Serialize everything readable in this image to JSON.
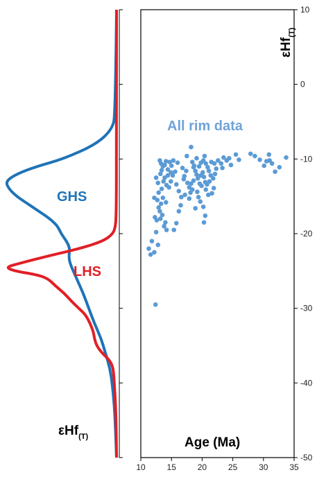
{
  "chart_data": {
    "type": "scatter",
    "kde_panel": {
      "axis_label_main": "εHf",
      "axis_label_sub": "(T)",
      "curves": [
        {
          "name": "GHS",
          "color": "#1f73b7",
          "profile": [
            [
              10,
              0
            ],
            [
              -4,
              0.01
            ],
            [
              -6,
              0.04
            ],
            [
              -8,
              0.18
            ],
            [
              -10,
              0.48
            ],
            [
              -11,
              0.72
            ],
            [
              -12,
              0.9
            ],
            [
              -13,
              1.0
            ],
            [
              -14,
              0.97
            ],
            [
              -15,
              0.9
            ],
            [
              -16,
              0.8
            ],
            [
              -17,
              0.7
            ],
            [
              -18,
              0.6
            ],
            [
              -19,
              0.53
            ],
            [
              -20,
              0.5
            ],
            [
              -21,
              0.45
            ],
            [
              -22,
              0.42
            ],
            [
              -23,
              0.43
            ],
            [
              -24,
              0.42
            ],
            [
              -26,
              0.36
            ],
            [
              -28,
              0.3
            ],
            [
              -30,
              0.25
            ],
            [
              -32,
              0.2
            ],
            [
              -34,
              0.14
            ],
            [
              -36,
              0.1
            ],
            [
              -38,
              0.06
            ],
            [
              -40,
              0.04
            ],
            [
              -43,
              0.02
            ],
            [
              -46,
              0.01
            ],
            [
              -50,
              0
            ]
          ]
        },
        {
          "name": "LHS",
          "color": "#e11f26",
          "profile": [
            [
              10,
              0
            ],
            [
              -10,
              0
            ],
            [
              -16,
              0.002
            ],
            [
              -18,
              0.005
            ],
            [
              -19,
              0.01
            ],
            [
              -20,
              0.03
            ],
            [
              -21,
              0.12
            ],
            [
              -22,
              0.33
            ],
            [
              -23,
              0.62
            ],
            [
              -24,
              0.88
            ],
            [
              -24.5,
              1.0
            ],
            [
              -25,
              0.92
            ],
            [
              -25.5,
              0.72
            ],
            [
              -26,
              0.62
            ],
            [
              -27,
              0.55
            ],
            [
              -28,
              0.47
            ],
            [
              -29,
              0.41
            ],
            [
              -30,
              0.34
            ],
            [
              -31,
              0.27
            ],
            [
              -33,
              0.21
            ],
            [
              -34,
              0.2
            ],
            [
              -35,
              0.18
            ],
            [
              -36,
              0.13
            ],
            [
              -37,
              0.06
            ],
            [
              -38,
              0.03
            ],
            [
              -40,
              0.02
            ],
            [
              -44,
              0.005
            ],
            [
              -50,
              0
            ]
          ]
        }
      ],
      "labels": [
        {
          "text": "GHS",
          "color": "#1f73b7"
        },
        {
          "text": "LHS",
          "color": "#e11f26"
        }
      ]
    },
    "scatter_panel": {
      "title": "All rim data",
      "title_color": "#6fa3d9",
      "point_color": "#5b9bd5",
      "xlabel": "Age (Ma)",
      "ylabel_main": "εHf",
      "ylabel_sub": "(T)",
      "xlim": [
        10,
        35
      ],
      "ylim": [
        -50,
        10
      ],
      "xticks": [
        10,
        15,
        20,
        25,
        30,
        35
      ],
      "yticks": [
        10,
        0,
        -10,
        -20,
        -30,
        -40,
        -50
      ],
      "points": [
        [
          11.3,
          -22
        ],
        [
          11.6,
          -22.8
        ],
        [
          12.2,
          -22.5
        ],
        [
          12.4,
          -29.5
        ],
        [
          11.8,
          -21
        ],
        [
          12.5,
          -19.8
        ],
        [
          12.8,
          -21.5
        ],
        [
          12.3,
          -17.8
        ],
        [
          12.6,
          -18.2
        ],
        [
          12.9,
          -16.5
        ],
        [
          13.1,
          -17
        ],
        [
          13.3,
          -16
        ],
        [
          12.7,
          -15.5
        ],
        [
          12.2,
          -15.2
        ],
        [
          12.9,
          -14.5
        ],
        [
          13.4,
          -14
        ],
        [
          13.6,
          -15.2
        ],
        [
          14.1,
          -15.8
        ],
        [
          13.5,
          -17.5
        ],
        [
          14,
          -18.5
        ],
        [
          14.2,
          -19.5
        ],
        [
          13.8,
          -19
        ],
        [
          13.2,
          -18
        ],
        [
          13.7,
          -13
        ],
        [
          14.2,
          -13.5
        ],
        [
          14.6,
          -13.8
        ],
        [
          13.9,
          -12.5
        ],
        [
          14.4,
          -12.2
        ],
        [
          13.2,
          -12
        ],
        [
          12.5,
          -12.5
        ],
        [
          12.8,
          -13.2
        ],
        [
          13.4,
          -11.5
        ],
        [
          13.6,
          -11
        ],
        [
          13.3,
          -10.6
        ],
        [
          13.9,
          -10.8
        ],
        [
          14.1,
          -10.3
        ],
        [
          14.7,
          -10.4
        ],
        [
          15,
          -10.9
        ],
        [
          14.4,
          -11.4
        ],
        [
          14.9,
          -11.8
        ],
        [
          15.3,
          -10.2
        ],
        [
          13.1,
          -10.2
        ],
        [
          15.2,
          -12.2
        ],
        [
          14.9,
          -13
        ],
        [
          15.8,
          -13.4
        ],
        [
          16.2,
          -14.3
        ],
        [
          16.6,
          -15.1
        ],
        [
          17.1,
          -12.3
        ],
        [
          17.4,
          -11.6
        ],
        [
          16.8,
          -11.2
        ],
        [
          17.6,
          -13.2
        ],
        [
          17.9,
          -13.8
        ],
        [
          18.1,
          -14.5
        ],
        [
          17.2,
          -14.8
        ],
        [
          16.5,
          -16.2
        ],
        [
          16.2,
          -17
        ],
        [
          15.8,
          -18.6
        ],
        [
          15.4,
          -19.5
        ],
        [
          17.5,
          -9.6
        ],
        [
          18.2,
          -8.4
        ],
        [
          18.4,
          -10.4
        ],
        [
          18.7,
          -10.9
        ],
        [
          18.9,
          -11.6
        ],
        [
          19.1,
          -12.1
        ],
        [
          19.3,
          -12.6
        ],
        [
          18.6,
          -12.9
        ],
        [
          18.2,
          -13.3
        ],
        [
          18.4,
          -14.1
        ],
        [
          19.2,
          -14.4
        ],
        [
          19.6,
          -13.3
        ],
        [
          19.8,
          -12.2
        ],
        [
          20.1,
          -11.8
        ],
        [
          20.3,
          -12.4
        ],
        [
          20.5,
          -13.1
        ],
        [
          19.9,
          -13.6
        ],
        [
          19.4,
          -15.1
        ],
        [
          19.7,
          -15.7
        ],
        [
          20.2,
          -16.4
        ],
        [
          20.5,
          -17.6
        ],
        [
          20.3,
          -18.5
        ],
        [
          19.5,
          -11
        ],
        [
          19.8,
          -10.5
        ],
        [
          20.2,
          -10.2
        ],
        [
          20.6,
          -10.6
        ],
        [
          20.9,
          -11.1
        ],
        [
          21.1,
          -11.6
        ],
        [
          21.4,
          -12.2
        ],
        [
          21.2,
          -13
        ],
        [
          20.8,
          -13.4
        ],
        [
          20.6,
          -14.1
        ],
        [
          21.6,
          -14.6
        ],
        [
          21.9,
          -13.9
        ],
        [
          21.8,
          -12.6
        ],
        [
          22.1,
          -12
        ],
        [
          22.3,
          -11.3
        ],
        [
          22,
          -10.6
        ],
        [
          22.6,
          -10.2
        ],
        [
          23.1,
          -10.6
        ],
        [
          23.5,
          -9.8
        ],
        [
          24,
          -10.2
        ],
        [
          24.4,
          -9.9
        ],
        [
          24.7,
          -10.8
        ],
        [
          25.5,
          -9.4
        ],
        [
          23.3,
          -11.2
        ],
        [
          26,
          -10.1
        ],
        [
          27.9,
          -9.3
        ],
        [
          28.6,
          -9.6
        ],
        [
          29.4,
          -10.1
        ],
        [
          30.1,
          -10.9
        ],
        [
          30.5,
          -10.3
        ],
        [
          30.9,
          -9.4
        ],
        [
          31.4,
          -10.6
        ],
        [
          31.9,
          -11.7
        ],
        [
          32.6,
          -11.1
        ],
        [
          33.7,
          -9.8
        ],
        [
          31,
          -10.2
        ],
        [
          21.5,
          -10.4
        ],
        [
          21.0,
          -14.8
        ],
        [
          17.9,
          -15.3
        ],
        [
          18.9,
          -16.6
        ],
        [
          19.1,
          -9.9
        ],
        [
          20.4,
          -9.6
        ],
        [
          16.0,
          -10.5
        ],
        [
          15.6,
          -11.7
        ],
        [
          17.0,
          -12.7
        ],
        [
          18.6,
          -11.1
        ]
      ]
    }
  }
}
